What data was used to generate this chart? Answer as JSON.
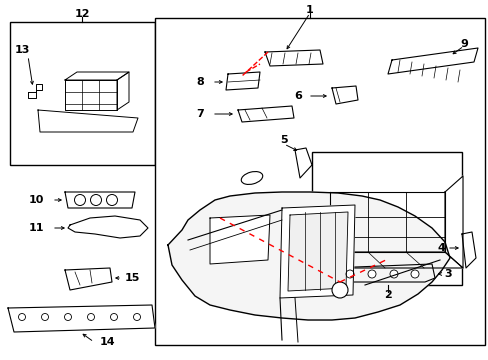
{
  "bg_color": "#ffffff",
  "line_color": "#000000",
  "red_color": "#ff0000",
  "fig_width": 4.89,
  "fig_height": 3.6,
  "dpi": 100
}
